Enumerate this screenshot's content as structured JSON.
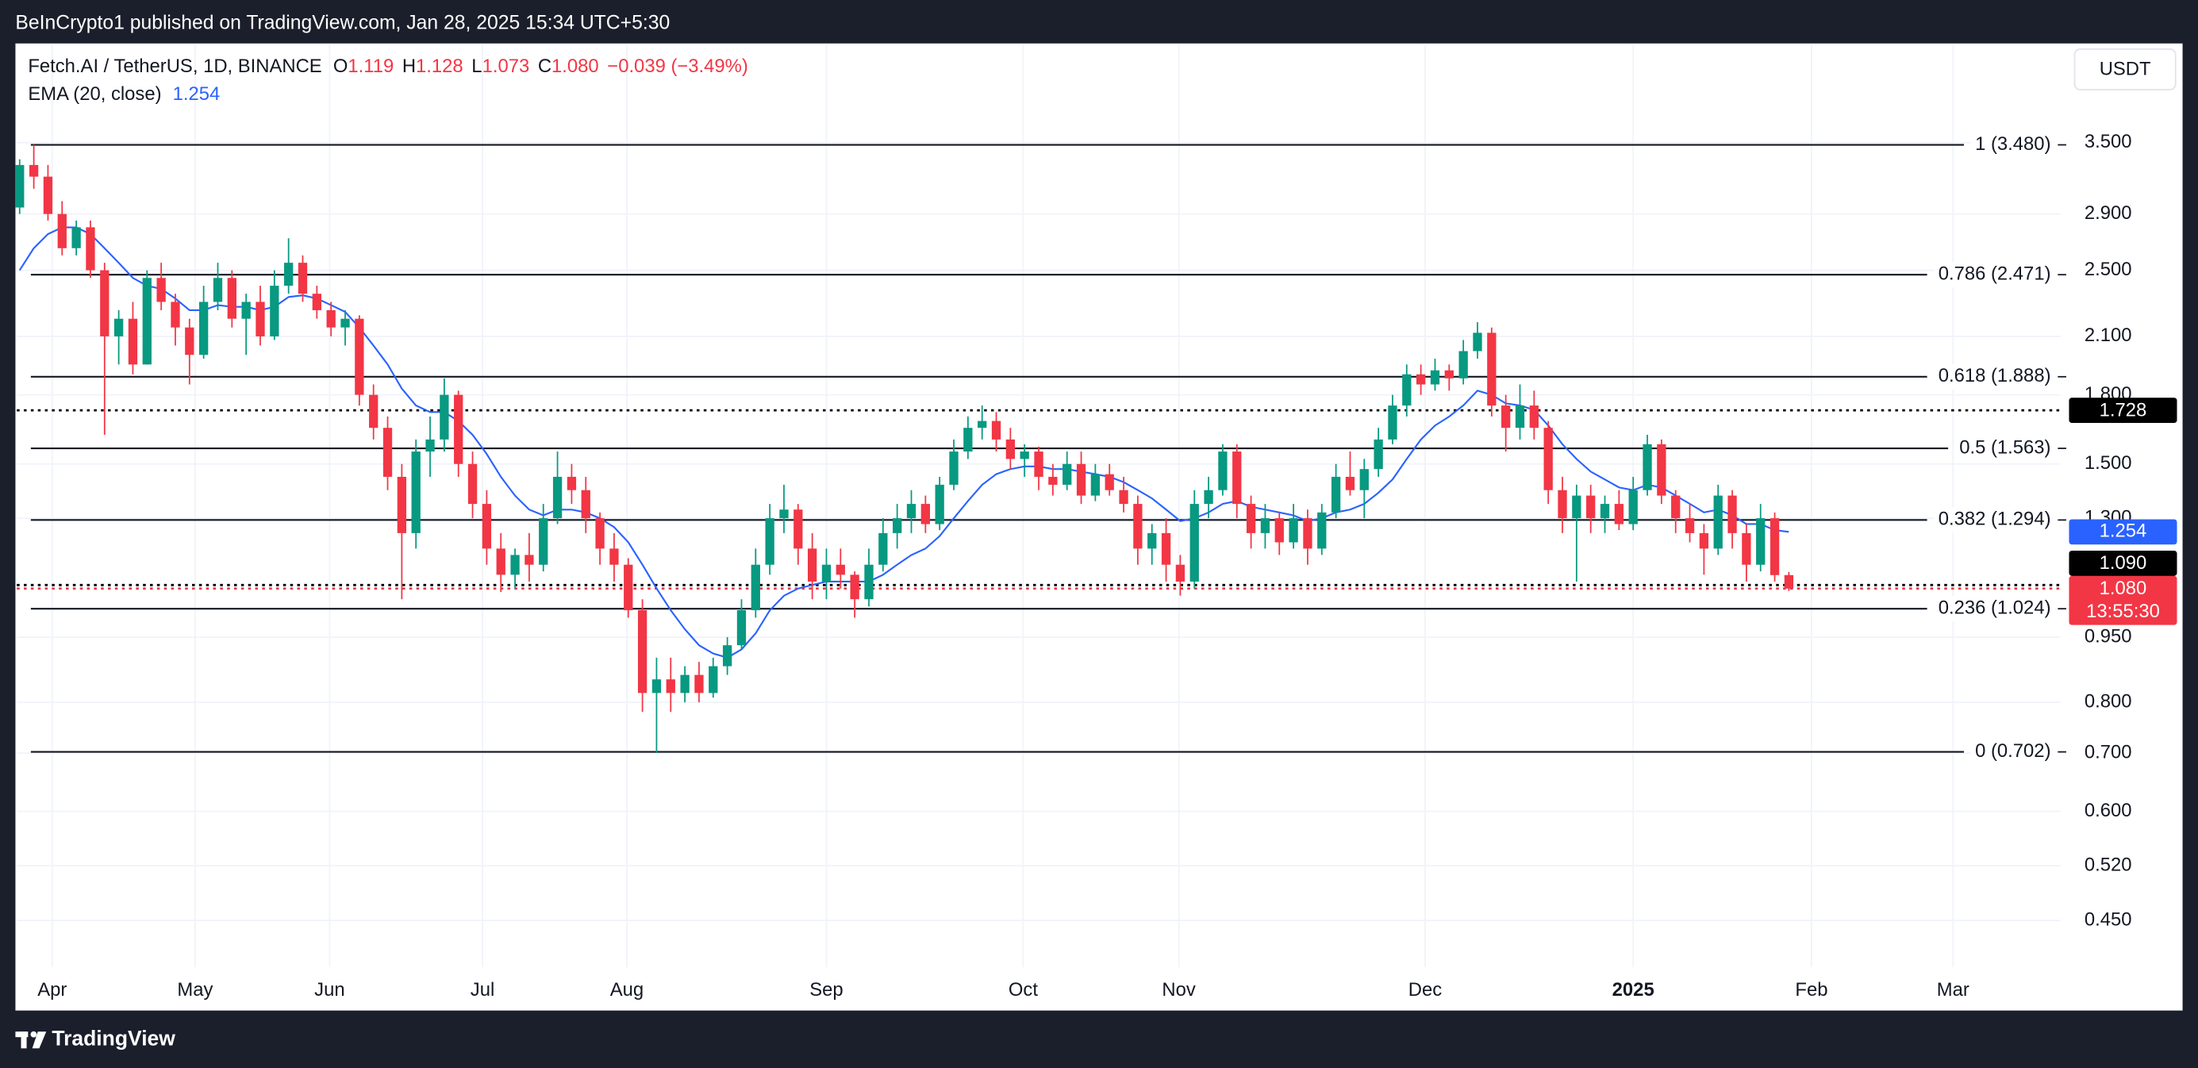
{
  "header": {
    "published": "BeInCrypto1 published on TradingView.com, Jan 28, 2025 15:34 UTC+5:30"
  },
  "legend": {
    "symbol": "Fetch.AI / TetherUS, 1D, BINANCE",
    "fields": [
      {
        "key": "O",
        "text": "1.119"
      },
      {
        "key": "H",
        "text": "1.128"
      },
      {
        "key": "L",
        "text": "1.073"
      },
      {
        "key": "C",
        "text": "1.080"
      }
    ],
    "change": "−0.039 (−3.49%)"
  },
  "currency": "USDT",
  "footer": {
    "brand": "TradingView"
  },
  "chart_data": {
    "type": "candlestick",
    "log_scale": true,
    "grid": true,
    "up_color": "#089981",
    "down_color": "#f23645",
    "candles": [
      [
        2.95,
        3.35,
        2.9,
        3.3
      ],
      [
        3.3,
        3.48,
        3.1,
        3.2
      ],
      [
        3.2,
        3.3,
        2.85,
        2.9
      ],
      [
        2.9,
        3.0,
        2.6,
        2.65
      ],
      [
        2.65,
        2.85,
        2.6,
        2.8
      ],
      [
        2.8,
        2.85,
        2.45,
        2.5
      ],
      [
        2.5,
        2.55,
        1.62,
        2.1
      ],
      [
        2.1,
        2.25,
        1.95,
        2.2
      ],
      [
        2.2,
        2.3,
        1.9,
        1.95
      ],
      [
        1.95,
        2.5,
        1.95,
        2.45
      ],
      [
        2.45,
        2.55,
        2.25,
        2.3
      ],
      [
        2.3,
        2.35,
        2.05,
        2.15
      ],
      [
        2.15,
        2.2,
        1.85,
        2.0
      ],
      [
        2.0,
        2.4,
        1.98,
        2.3
      ],
      [
        2.3,
        2.55,
        2.25,
        2.45
      ],
      [
        2.45,
        2.5,
        2.15,
        2.2
      ],
      [
        2.2,
        2.35,
        2.0,
        2.3
      ],
      [
        2.3,
        2.4,
        2.05,
        2.1
      ],
      [
        2.1,
        2.5,
        2.08,
        2.4
      ],
      [
        2.4,
        2.72,
        2.35,
        2.55
      ],
      [
        2.55,
        2.6,
        2.3,
        2.35
      ],
      [
        2.35,
        2.4,
        2.2,
        2.25
      ],
      [
        2.25,
        2.3,
        2.1,
        2.15
      ],
      [
        2.15,
        2.25,
        2.05,
        2.2
      ],
      [
        2.2,
        2.22,
        1.75,
        1.8
      ],
      [
        1.8,
        1.85,
        1.6,
        1.65
      ],
      [
        1.65,
        1.7,
        1.4,
        1.45
      ],
      [
        1.45,
        1.5,
        1.05,
        1.25
      ],
      [
        1.25,
        1.6,
        1.2,
        1.55
      ],
      [
        1.55,
        1.7,
        1.45,
        1.6
      ],
      [
        1.6,
        1.88,
        1.55,
        1.8
      ],
      [
        1.8,
        1.82,
        1.45,
        1.5
      ],
      [
        1.5,
        1.55,
        1.3,
        1.35
      ],
      [
        1.35,
        1.4,
        1.15,
        1.2
      ],
      [
        1.2,
        1.25,
        1.07,
        1.12
      ],
      [
        1.12,
        1.2,
        1.08,
        1.18
      ],
      [
        1.18,
        1.25,
        1.1,
        1.15
      ],
      [
        1.15,
        1.35,
        1.13,
        1.3
      ],
      [
        1.3,
        1.55,
        1.28,
        1.45
      ],
      [
        1.45,
        1.5,
        1.35,
        1.4
      ],
      [
        1.4,
        1.45,
        1.25,
        1.3
      ],
      [
        1.3,
        1.32,
        1.15,
        1.2
      ],
      [
        1.2,
        1.25,
        1.1,
        1.15
      ],
      [
        1.15,
        1.17,
        1.0,
        1.02
      ],
      [
        1.02,
        1.05,
        0.78,
        0.82
      ],
      [
        0.82,
        0.9,
        0.7,
        0.85
      ],
      [
        0.85,
        0.9,
        0.78,
        0.82
      ],
      [
        0.82,
        0.88,
        0.8,
        0.86
      ],
      [
        0.86,
        0.89,
        0.8,
        0.82
      ],
      [
        0.82,
        0.9,
        0.81,
        0.88
      ],
      [
        0.88,
        0.95,
        0.86,
        0.93
      ],
      [
        0.93,
        1.05,
        0.92,
        1.02
      ],
      [
        1.02,
        1.2,
        1.0,
        1.15
      ],
      [
        1.15,
        1.35,
        1.12,
        1.3
      ],
      [
        1.3,
        1.42,
        1.25,
        1.33
      ],
      [
        1.33,
        1.35,
        1.15,
        1.2
      ],
      [
        1.2,
        1.25,
        1.05,
        1.1
      ],
      [
        1.1,
        1.2,
        1.05,
        1.15
      ],
      [
        1.15,
        1.2,
        1.08,
        1.12
      ],
      [
        1.12,
        1.13,
        1.0,
        1.05
      ],
      [
        1.05,
        1.2,
        1.03,
        1.15
      ],
      [
        1.15,
        1.3,
        1.13,
        1.25
      ],
      [
        1.25,
        1.35,
        1.2,
        1.3
      ],
      [
        1.3,
        1.4,
        1.25,
        1.35
      ],
      [
        1.35,
        1.38,
        1.25,
        1.28
      ],
      [
        1.28,
        1.45,
        1.26,
        1.42
      ],
      [
        1.42,
        1.6,
        1.4,
        1.55
      ],
      [
        1.55,
        1.7,
        1.52,
        1.65
      ],
      [
        1.65,
        1.75,
        1.6,
        1.68
      ],
      [
        1.68,
        1.72,
        1.55,
        1.6
      ],
      [
        1.6,
        1.65,
        1.48,
        1.52
      ],
      [
        1.52,
        1.58,
        1.45,
        1.55
      ],
      [
        1.55,
        1.57,
        1.4,
        1.45
      ],
      [
        1.45,
        1.5,
        1.38,
        1.42
      ],
      [
        1.42,
        1.55,
        1.4,
        1.5
      ],
      [
        1.5,
        1.55,
        1.35,
        1.38
      ],
      [
        1.38,
        1.5,
        1.36,
        1.46
      ],
      [
        1.46,
        1.5,
        1.38,
        1.4
      ],
      [
        1.4,
        1.45,
        1.32,
        1.35
      ],
      [
        1.35,
        1.38,
        1.15,
        1.2
      ],
      [
        1.2,
        1.28,
        1.15,
        1.25
      ],
      [
        1.25,
        1.3,
        1.1,
        1.15
      ],
      [
        1.15,
        1.18,
        1.06,
        1.1
      ],
      [
        1.1,
        1.4,
        1.08,
        1.35
      ],
      [
        1.35,
        1.45,
        1.3,
        1.4
      ],
      [
        1.4,
        1.58,
        1.38,
        1.55
      ],
      [
        1.55,
        1.58,
        1.3,
        1.35
      ],
      [
        1.35,
        1.38,
        1.2,
        1.25
      ],
      [
        1.25,
        1.35,
        1.2,
        1.3
      ],
      [
        1.3,
        1.32,
        1.18,
        1.22
      ],
      [
        1.22,
        1.35,
        1.2,
        1.3
      ],
      [
        1.3,
        1.33,
        1.15,
        1.2
      ],
      [
        1.2,
        1.35,
        1.18,
        1.32
      ],
      [
        1.32,
        1.5,
        1.3,
        1.45
      ],
      [
        1.45,
        1.55,
        1.38,
        1.4
      ],
      [
        1.4,
        1.52,
        1.3,
        1.48
      ],
      [
        1.48,
        1.65,
        1.45,
        1.6
      ],
      [
        1.6,
        1.8,
        1.58,
        1.75
      ],
      [
        1.75,
        1.95,
        1.7,
        1.9
      ],
      [
        1.9,
        1.95,
        1.8,
        1.85
      ],
      [
        1.85,
        1.98,
        1.82,
        1.92
      ],
      [
        1.92,
        1.95,
        1.82,
        1.88
      ],
      [
        1.88,
        2.08,
        1.85,
        2.02
      ],
      [
        2.02,
        2.18,
        1.98,
        2.12
      ],
      [
        2.12,
        2.15,
        1.7,
        1.75
      ],
      [
        1.75,
        1.8,
        1.55,
        1.65
      ],
      [
        1.65,
        1.85,
        1.6,
        1.75
      ],
      [
        1.75,
        1.82,
        1.6,
        1.65
      ],
      [
        1.65,
        1.68,
        1.35,
        1.4
      ],
      [
        1.4,
        1.45,
        1.25,
        1.3
      ],
      [
        1.3,
        1.42,
        1.1,
        1.38
      ],
      [
        1.38,
        1.42,
        1.25,
        1.3
      ],
      [
        1.3,
        1.38,
        1.25,
        1.35
      ],
      [
        1.35,
        1.4,
        1.26,
        1.28
      ],
      [
        1.28,
        1.45,
        1.26,
        1.4
      ],
      [
        1.4,
        1.62,
        1.38,
        1.58
      ],
      [
        1.58,
        1.6,
        1.35,
        1.38
      ],
      [
        1.38,
        1.4,
        1.25,
        1.3
      ],
      [
        1.3,
        1.35,
        1.22,
        1.25
      ],
      [
        1.25,
        1.28,
        1.12,
        1.2
      ],
      [
        1.2,
        1.42,
        1.18,
        1.38
      ],
      [
        1.38,
        1.4,
        1.2,
        1.25
      ],
      [
        1.25,
        1.28,
        1.1,
        1.15
      ],
      [
        1.15,
        1.35,
        1.13,
        1.3
      ],
      [
        1.3,
        1.32,
        1.1,
        1.119
      ],
      [
        1.119,
        1.128,
        1.073,
        1.08
      ]
    ],
    "ema": {
      "name": "EMA (20, close)",
      "color": "#2962ff",
      "values": [
        2.5,
        2.65,
        2.75,
        2.8,
        2.8,
        2.75,
        2.65,
        2.55,
        2.45,
        2.4,
        2.38,
        2.32,
        2.25,
        2.25,
        2.28,
        2.27,
        2.27,
        2.25,
        2.27,
        2.33,
        2.34,
        2.32,
        2.28,
        2.24,
        2.15,
        2.05,
        1.95,
        1.83,
        1.75,
        1.72,
        1.72,
        1.68,
        1.62,
        1.54,
        1.45,
        1.38,
        1.33,
        1.31,
        1.33,
        1.33,
        1.32,
        1.3,
        1.27,
        1.22,
        1.15,
        1.08,
        1.02,
        0.97,
        0.93,
        0.91,
        0.9,
        0.92,
        0.96,
        1.02,
        1.06,
        1.08,
        1.09,
        1.1,
        1.1,
        1.1,
        1.1,
        1.12,
        1.15,
        1.18,
        1.2,
        1.24,
        1.3,
        1.36,
        1.42,
        1.46,
        1.48,
        1.49,
        1.49,
        1.48,
        1.48,
        1.47,
        1.46,
        1.45,
        1.43,
        1.4,
        1.37,
        1.33,
        1.29,
        1.3,
        1.32,
        1.35,
        1.36,
        1.34,
        1.33,
        1.32,
        1.31,
        1.29,
        1.3,
        1.32,
        1.33,
        1.35,
        1.39,
        1.44,
        1.52,
        1.6,
        1.66,
        1.7,
        1.75,
        1.82,
        1.8,
        1.76,
        1.75,
        1.73,
        1.66,
        1.58,
        1.52,
        1.47,
        1.44,
        1.41,
        1.4,
        1.42,
        1.41,
        1.38,
        1.35,
        1.32,
        1.33,
        1.31,
        1.28,
        1.28,
        1.26,
        1.254
      ]
    },
    "ylim": [
      0.398,
      4.53
    ],
    "yticks": [
      {
        "value": 3.5,
        "label": "3.500"
      },
      {
        "value": 2.9,
        "label": "2.900"
      },
      {
        "value": 2.5,
        "label": "2.500"
      },
      {
        "value": 2.1,
        "label": "2.100"
      },
      {
        "value": 1.8,
        "label": "1.800"
      },
      {
        "value": 1.5,
        "label": "1.500"
      },
      {
        "value": 1.3,
        "label": "1.300"
      },
      {
        "value": 0.95,
        "label": "0.950"
      },
      {
        "value": 0.8,
        "label": "0.800"
      },
      {
        "value": 0.7,
        "label": "0.700"
      },
      {
        "value": 0.6,
        "label": "0.600"
      },
      {
        "value": 0.52,
        "label": "0.520"
      },
      {
        "value": 0.45,
        "label": "0.450"
      }
    ],
    "xlim": [
      -0.2,
      144.2
    ],
    "xticks": [
      {
        "value": 2.3,
        "label": "Apr"
      },
      {
        "value": 12.4,
        "label": "May"
      },
      {
        "value": 21.9,
        "label": "Jun"
      },
      {
        "value": 32.7,
        "label": "Jul"
      },
      {
        "value": 42.9,
        "label": "Aug"
      },
      {
        "value": 57.0,
        "label": "Sep"
      },
      {
        "value": 70.9,
        "label": "Oct"
      },
      {
        "value": 81.9,
        "label": "Nov"
      },
      {
        "value": 99.3,
        "label": "Dec"
      },
      {
        "value": 114.0,
        "label": "2025"
      },
      {
        "value": 126.6,
        "label": "Feb"
      },
      {
        "value": 136.6,
        "label": "Mar"
      }
    ],
    "fib_levels": [
      {
        "value": 3.48,
        "label": "1 (3.480)"
      },
      {
        "value": 2.471,
        "label": "0.786 (2.471)"
      },
      {
        "value": 1.888,
        "label": "0.618 (1.888)"
      },
      {
        "value": 1.563,
        "label": "0.5 (1.563)"
      },
      {
        "value": 1.294,
        "label": "0.382 (1.294)"
      },
      {
        "value": 1.024,
        "label": "0.236 (1.024)"
      },
      {
        "value": 0.702,
        "label": "0 (0.702)"
      }
    ],
    "price_levels": [
      {
        "value": 1.728,
        "label": "1.728",
        "color": "#000000",
        "dotted_line": true
      },
      {
        "value": 1.09,
        "label": "1.090",
        "color": "#000000",
        "dotted_line": true
      },
      {
        "value": 1.08,
        "label": "1.080",
        "color": "#f23645",
        "dotted_line": true,
        "countdown": "13:55:30"
      }
    ]
  }
}
